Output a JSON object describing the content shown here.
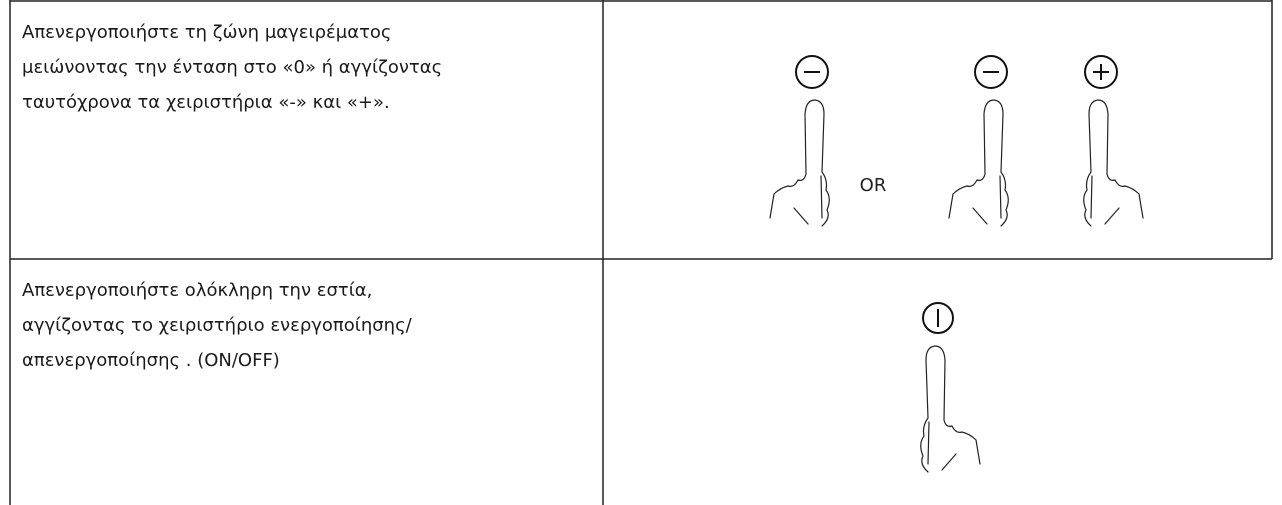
{
  "table": {
    "rows": [
      {
        "text": [
          "Απενεργοποιήστε τη ζώνη μαγειρέματος",
          "μειώνοντας την ένταση στο «0» ή αγγίζοντας",
          "ταυτόχρονα τα χειριστήρια «-» και «+»."
        ],
        "or_label": "OR"
      },
      {
        "text": [
          "Απενεργοποιήστε ολόκληρη την εστία,",
          "αγγίζοντας το χειριστήριο ενεργοποίησης/",
          "απενεργοποίησης . (ON/OFF)"
        ]
      }
    ]
  }
}
